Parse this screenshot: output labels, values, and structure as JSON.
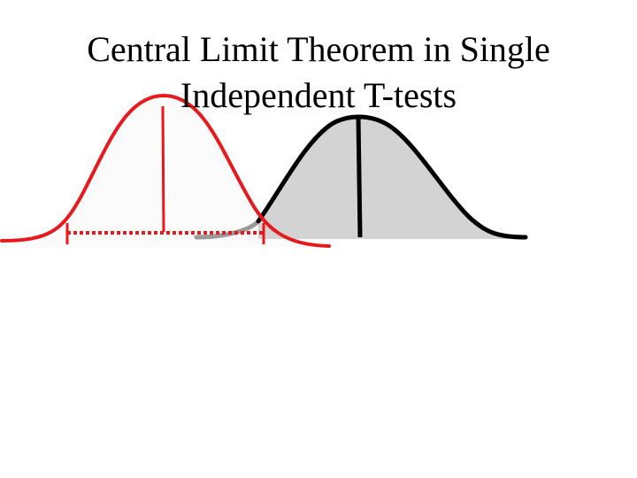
{
  "slide": {
    "title_line1": "Central Limit Theorem in Single",
    "title_line2": "Independent T-tests"
  },
  "colors": {
    "background": "#ffffff",
    "sample_curve": "#e8191c",
    "sample_fill": "#fbfbfb",
    "population_curve": "#000000",
    "population_fill": "#d3d3d3",
    "tail_gray": "#999999",
    "title_text": "#000000"
  }
}
